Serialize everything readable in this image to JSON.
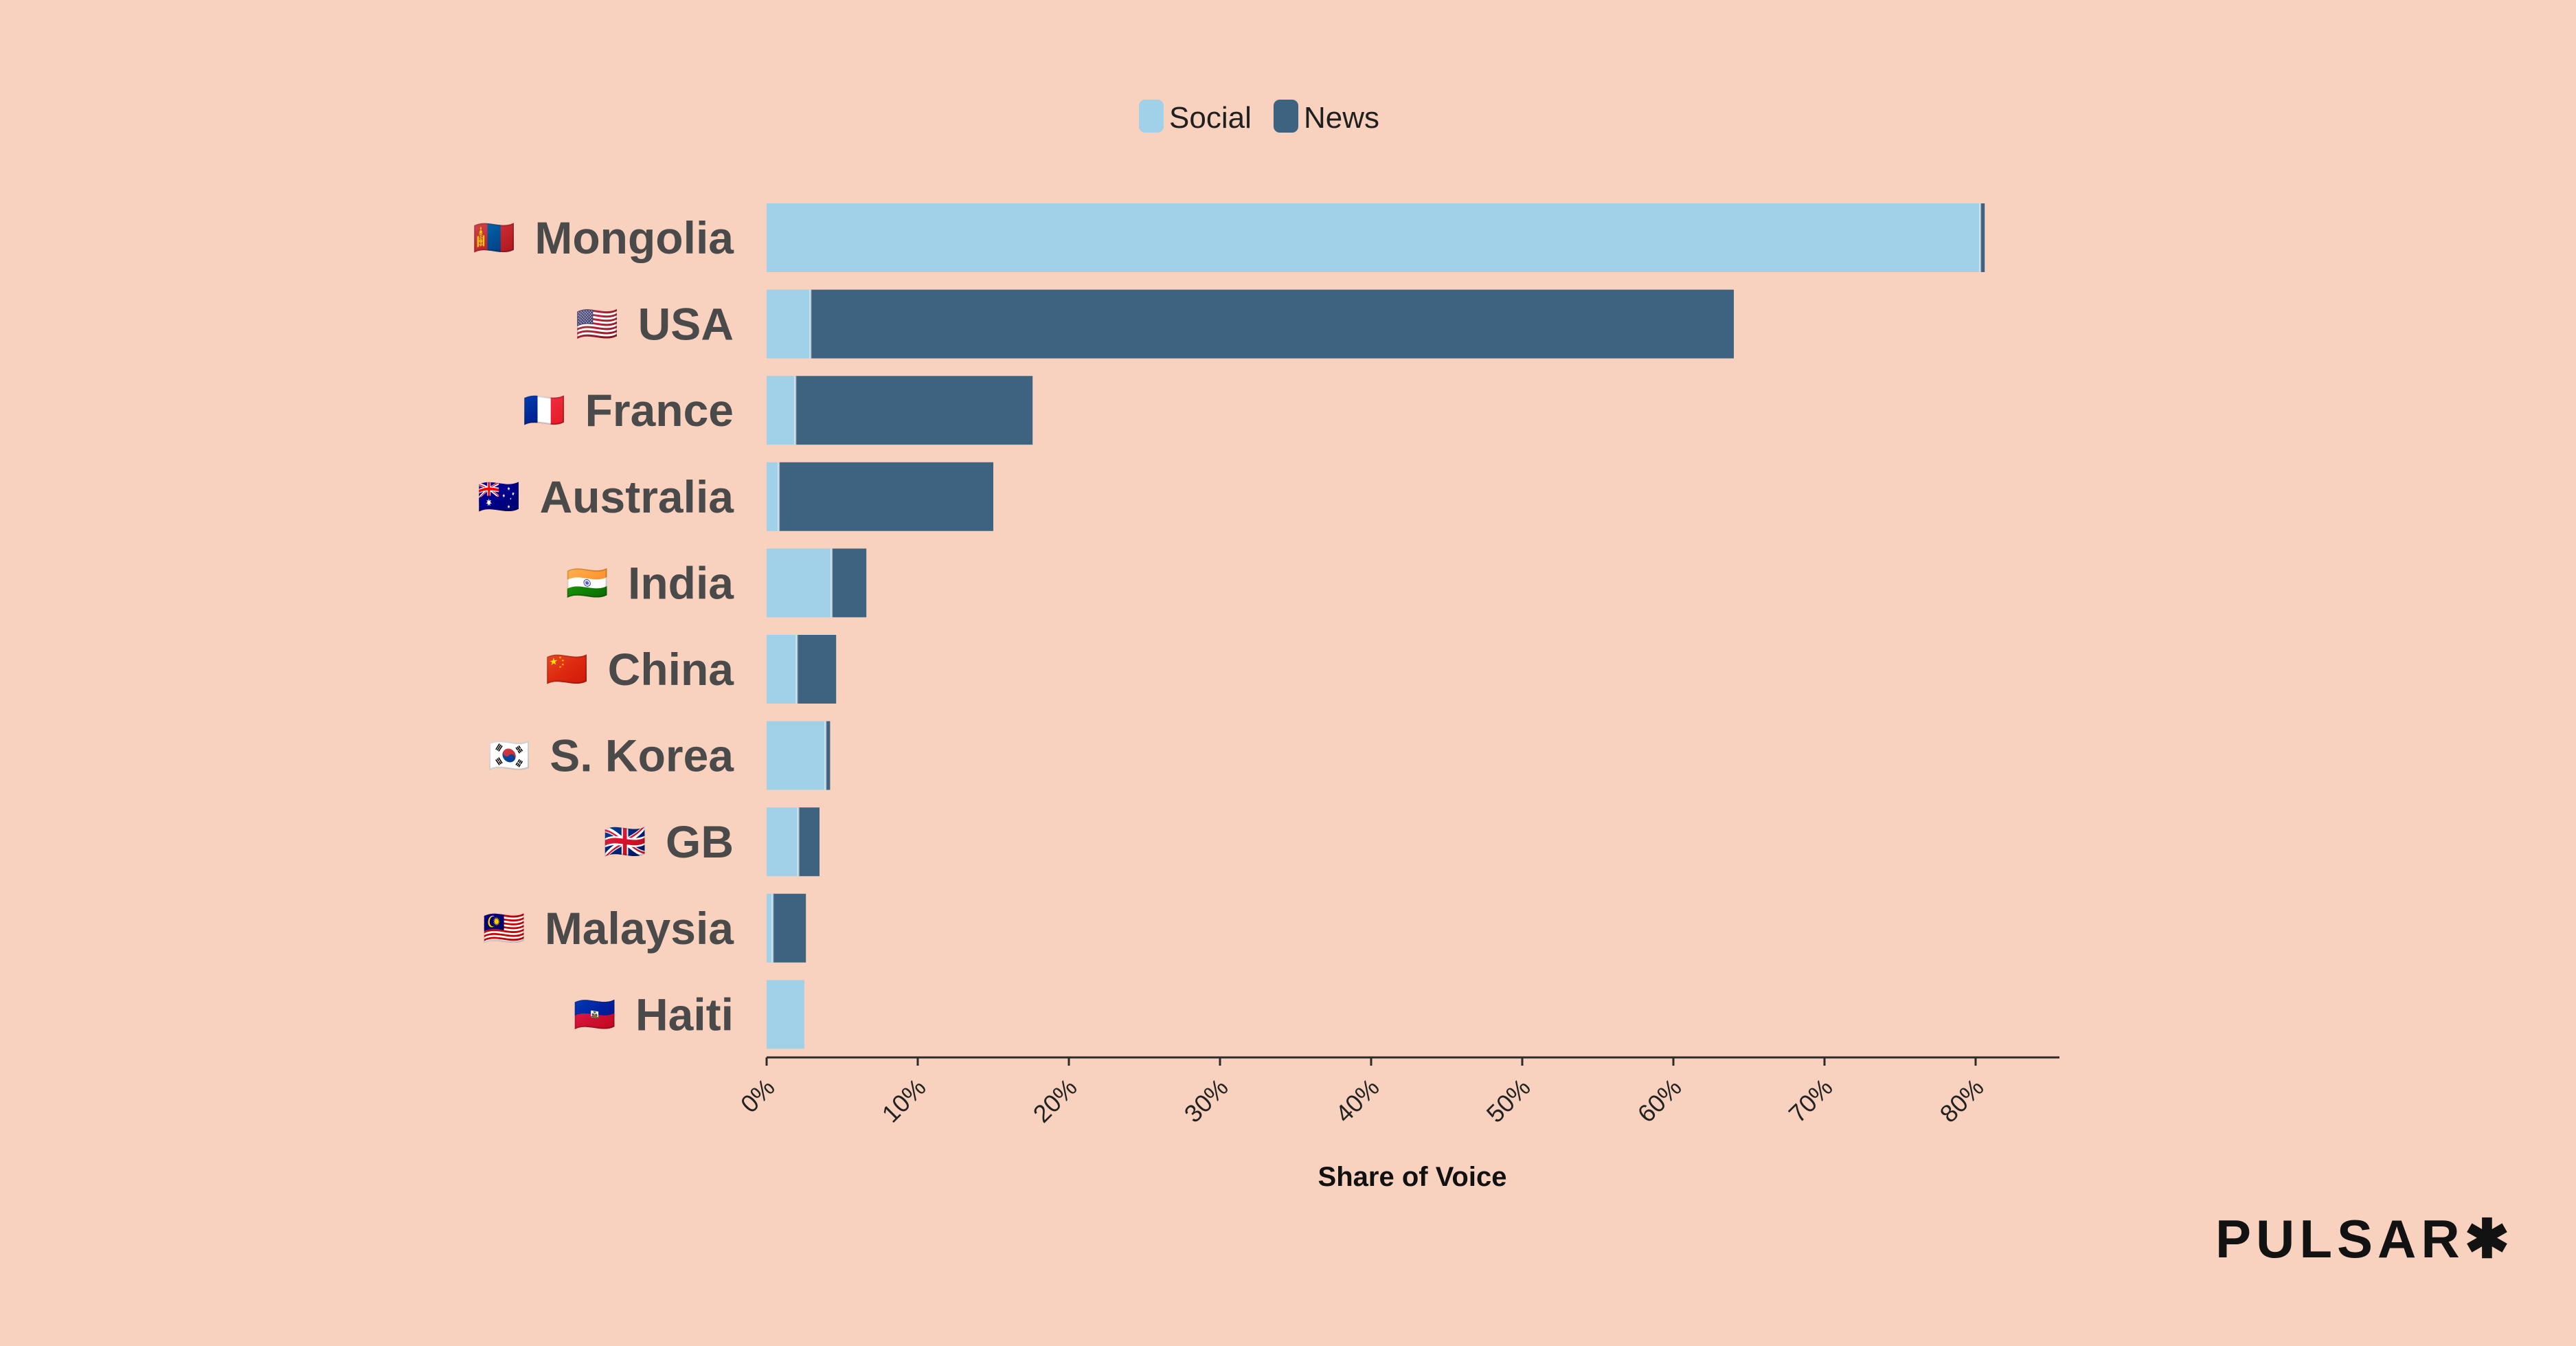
{
  "brand": {
    "name": "PULSAR",
    "mark": "✱"
  },
  "chart_data": {
    "type": "bar",
    "orientation": "horizontal",
    "stacked": true,
    "legend_position": "top-center",
    "categories": [
      "Mongolia",
      "USA",
      "France",
      "Australia",
      "India",
      "China",
      "S. Korea",
      "GB",
      "Malaysia",
      "Haiti"
    ],
    "flags": [
      "🇲🇳",
      "🇺🇸",
      "🇫🇷",
      "🇦🇺",
      "🇮🇳",
      "🇨🇳",
      "🇰🇷",
      "🇬🇧",
      "🇲🇾",
      "🇭🇹"
    ],
    "series": [
      {
        "name": "Social",
        "color": "#a0d1e8",
        "values": [
          80.3,
          2.9,
          1.9,
          0.8,
          4.3,
          2.0,
          3.9,
          2.1,
          0.4,
          2.5
        ]
      },
      {
        "name": "News",
        "color": "#3e6380",
        "values": [
          0.3,
          61.1,
          15.7,
          14.2,
          2.3,
          2.6,
          0.3,
          1.4,
          2.2,
          0.0
        ]
      }
    ],
    "xlabel": "Share of Voice",
    "ylabel": "",
    "title": "",
    "xlim": [
      0,
      86
    ],
    "xticks": [
      "0%",
      "10%",
      "20%",
      "30%",
      "40%",
      "50%",
      "60%",
      "70%",
      "80%"
    ],
    "grid": false
  }
}
